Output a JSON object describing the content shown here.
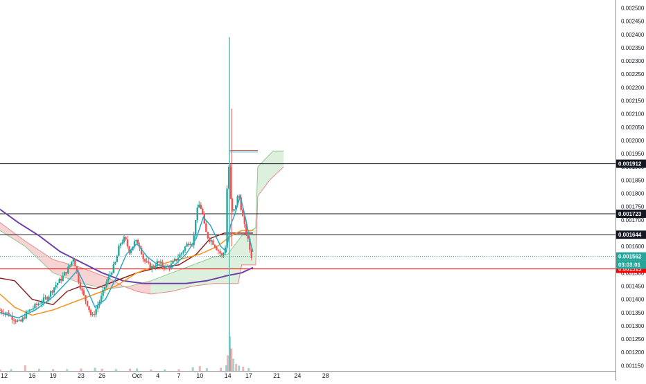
{
  "chart_data": {
    "type": "candlestick",
    "title": "",
    "xlabel": "",
    "ylabel": "",
    "ylim": [
      0.00113,
      0.00253
    ],
    "x_domain_days": [
      -19.6,
      68.5
    ],
    "grid": false,
    "y_ticks": [
      "0.002500",
      "0.002450",
      "0.002400",
      "0.002350",
      "0.002300",
      "0.002250",
      "0.002200",
      "0.002150",
      "0.002100",
      "0.002050",
      "0.002000",
      "0.001950",
      "0.001900",
      "0.001850",
      "0.001800",
      "0.001750",
      "0.001700",
      "0.001650",
      "0.001600",
      "0.001550",
      "0.001500",
      "0.001450",
      "0.001400",
      "0.001350",
      "0.001300",
      "0.001250",
      "0.001200",
      "0.001150"
    ],
    "x_ticks": [
      {
        "label": "12",
        "day": -19
      },
      {
        "label": "16",
        "day": -15
      },
      {
        "label": "19",
        "day": -12
      },
      {
        "label": "23",
        "day": -8
      },
      {
        "label": "26",
        "day": -5
      },
      {
        "label": "Oct",
        "day": 0
      },
      {
        "label": "4",
        "day": 3
      },
      {
        "label": "7",
        "day": 6
      },
      {
        "label": "10",
        "day": 9
      },
      {
        "label": "14",
        "day": 13
      },
      {
        "label": "17",
        "day": 16
      },
      {
        "label": "21",
        "day": 20
      },
      {
        "label": "24",
        "day": 23
      },
      {
        "label": "28",
        "day": 27
      }
    ],
    "horizontal_levels": [
      {
        "label": "0.001912",
        "value": 0.001912,
        "color": "#131722"
      },
      {
        "label": "0.001723",
        "value": 0.001723,
        "color": "#131722"
      },
      {
        "label": "0.001644",
        "value": 0.001644,
        "color": "#131722"
      },
      {
        "label": "0.001515",
        "value": 0.001515,
        "color": "#ff0000"
      }
    ],
    "last_price": {
      "label": "0.001562",
      "value": 0.001562,
      "countdown": "03:03:01",
      "color": "#26a69a"
    },
    "colors": {
      "up": "#26a69a",
      "down": "#ef5350",
      "ma_fast": "#2aa8c7",
      "ma_mid": "#f6921e",
      "ma_slow": "#6d3fa8",
      "base_line": "#8b2323",
      "cloud_bear": "#f5c4c4",
      "cloud_bull": "#cfe8cf",
      "cloud_edge_bear": "#e88a8a",
      "cloud_edge_bull": "#8fc98f",
      "spike": "#4fc3c3"
    },
    "price_series": [
      [
        -19.6,
        0.00136
      ],
      [
        -18.5,
        0.00135
      ],
      [
        -17.5,
        0.00133
      ],
      [
        -16.5,
        0.00131
      ],
      [
        -15.5,
        0.00135
      ],
      [
        -14.5,
        0.00137
      ],
      [
        -13.5,
        0.00139
      ],
      [
        -12.5,
        0.00141
      ],
      [
        -11.5,
        0.00145
      ],
      [
        -10.5,
        0.00148
      ],
      [
        -9.5,
        0.00152
      ],
      [
        -8.8,
        0.00156
      ],
      [
        -8.2,
        0.00148
      ],
      [
        -7.5,
        0.00142
      ],
      [
        -6.8,
        0.00138
      ],
      [
        -6.2,
        0.00133
      ],
      [
        -5.5,
        0.00137
      ],
      [
        -4.8,
        0.00141
      ],
      [
        -4.2,
        0.00146
      ],
      [
        -3.5,
        0.0015
      ],
      [
        -2.8,
        0.00154
      ],
      [
        -2.2,
        0.00161
      ],
      [
        -1.5,
        0.00163
      ],
      [
        -0.8,
        0.00158
      ],
      [
        0,
        0.00162
      ],
      [
        0.7,
        0.0016
      ],
      [
        1.2,
        0.00155
      ],
      [
        1.8,
        0.00153
      ],
      [
        2.5,
        0.00152
      ],
      [
        3.2,
        0.00154
      ],
      [
        3.8,
        0.00153
      ],
      [
        4.5,
        0.00152
      ],
      [
        5.2,
        0.00153
      ],
      [
        5.8,
        0.00155
      ],
      [
        6.5,
        0.00157
      ],
      [
        7.2,
        0.0016
      ],
      [
        7.8,
        0.00162
      ],
      [
        8.3,
        0.00161
      ],
      [
        8.7,
        0.00172
      ],
      [
        9.2,
        0.00176
      ],
      [
        9.6,
        0.00173
      ],
      [
        10.0,
        0.00166
      ],
      [
        10.5,
        0.00163
      ],
      [
        11.0,
        0.00162
      ],
      [
        11.5,
        0.0016
      ],
      [
        12.0,
        0.00158
      ],
      [
        12.5,
        0.00156
      ],
      [
        12.9,
        0.0016
      ],
      [
        13.3,
        0.00195
      ],
      [
        13.7,
        0.00175
      ],
      [
        14.0,
        0.00172
      ],
      [
        14.4,
        0.00176
      ],
      [
        14.8,
        0.0018
      ],
      [
        15.2,
        0.00174
      ],
      [
        15.6,
        0.00168
      ],
      [
        16.0,
        0.00164
      ],
      [
        16.4,
        0.00159
      ],
      [
        16.6,
        0.001562
      ]
    ],
    "ma_fast": [
      [
        -19.6,
        0.00135
      ],
      [
        -17.0,
        0.00133
      ],
      [
        -14.5,
        0.00136
      ],
      [
        -12.0,
        0.00141
      ],
      [
        -9.5,
        0.00148
      ],
      [
        -8.5,
        0.00151
      ],
      [
        -7.0,
        0.00143
      ],
      [
        -6.0,
        0.00137
      ],
      [
        -4.5,
        0.0014
      ],
      [
        -3.0,
        0.00148
      ],
      [
        -1.5,
        0.00157
      ],
      [
        0,
        0.00161
      ],
      [
        1.5,
        0.00156
      ],
      [
        3.0,
        0.00153
      ],
      [
        5.0,
        0.00152
      ],
      [
        7.0,
        0.00157
      ],
      [
        8.5,
        0.00163
      ],
      [
        9.5,
        0.00171
      ],
      [
        10.5,
        0.00168
      ],
      [
        12.0,
        0.0016
      ],
      [
        12.8,
        0.00158
      ],
      [
        13.4,
        0.00168
      ],
      [
        14.0,
        0.00172
      ],
      [
        14.8,
        0.00179
      ],
      [
        15.6,
        0.0017
      ],
      [
        16.2,
        0.00162
      ],
      [
        16.6,
        0.00158
      ]
    ],
    "ma_mid": [
      [
        -19.6,
        0.00142
      ],
      [
        -17.5,
        0.00137
      ],
      [
        -15.0,
        0.00134
      ],
      [
        -12.0,
        0.00136
      ],
      [
        -9.0,
        0.00139
      ],
      [
        -6.0,
        0.00142
      ],
      [
        -3.0,
        0.00145
      ],
      [
        0,
        0.0015
      ],
      [
        3.0,
        0.00153
      ],
      [
        6.0,
        0.00155
      ],
      [
        9.0,
        0.00157
      ],
      [
        11.5,
        0.0016
      ],
      [
        13.5,
        0.00164
      ],
      [
        15.0,
        0.00166
      ],
      [
        16.6,
        0.00166
      ]
    ],
    "ma_slow": [
      [
        -19.6,
        0.00174
      ],
      [
        -17.0,
        0.00169
      ],
      [
        -14.0,
        0.00164
      ],
      [
        -11.0,
        0.00158
      ],
      [
        -8.0,
        0.00154
      ],
      [
        -5.0,
        0.0015
      ],
      [
        -2.0,
        0.00147
      ],
      [
        1.0,
        0.00146
      ],
      [
        4.0,
        0.00146
      ],
      [
        7.0,
        0.00146
      ],
      [
        10.0,
        0.00147
      ],
      [
        13.0,
        0.00149
      ],
      [
        15.0,
        0.0015
      ],
      [
        16.6,
        0.00152
      ]
    ],
    "base_line": [
      [
        -19.6,
        0.00148
      ],
      [
        -17.5,
        0.00147
      ],
      [
        -15.0,
        0.0014
      ],
      [
        -12.0,
        0.00138
      ],
      [
        -10.0,
        0.00143
      ],
      [
        -8.0,
        0.00145
      ],
      [
        -6.0,
        0.00144
      ],
      [
        -4.0,
        0.00146
      ],
      [
        -2.0,
        0.00148
      ],
      [
        0,
        0.0015
      ],
      [
        3.0,
        0.00152
      ],
      [
        6.0,
        0.00153
      ],
      [
        8.5,
        0.00157
      ],
      [
        10.5,
        0.00163
      ],
      [
        12.5,
        0.00165
      ],
      [
        13.5,
        0.00165
      ],
      [
        16.6,
        0.00165
      ]
    ],
    "cloud_span_a": [
      [
        -19.6,
        0.00166
      ],
      [
        -16.0,
        0.0016
      ],
      [
        -12.0,
        0.0015
      ],
      [
        -8.0,
        0.00146
      ],
      [
        -4.0,
        0.00144
      ],
      [
        -1.0,
        0.00145
      ],
      [
        2.0,
        0.00147
      ],
      [
        5.0,
        0.0015
      ],
      [
        8.0,
        0.00153
      ],
      [
        11.0,
        0.00156
      ],
      [
        13.0,
        0.00157
      ],
      [
        15.0,
        0.00164
      ],
      [
        17.0,
        0.00167
      ],
      [
        17.3,
        0.0019
      ],
      [
        19.5,
        0.00196
      ],
      [
        21.0,
        0.00196
      ]
    ],
    "cloud_span_b": [
      [
        -19.6,
        0.00169
      ],
      [
        -16.0,
        0.00162
      ],
      [
        -12.0,
        0.00155
      ],
      [
        -8.0,
        0.00152
      ],
      [
        -4.0,
        0.00148
      ],
      [
        -2.0,
        0.00145
      ],
      [
        0,
        0.00143
      ],
      [
        2.0,
        0.00142
      ],
      [
        5.0,
        0.00143
      ],
      [
        8.0,
        0.00145
      ],
      [
        11.0,
        0.00146
      ],
      [
        13.5,
        0.00146
      ],
      [
        14.5,
        0.00146
      ],
      [
        15.0,
        0.00153
      ],
      [
        17.0,
        0.00153
      ],
      [
        17.3,
        0.00179
      ],
      [
        19.0,
        0.00185
      ],
      [
        21.0,
        0.0019
      ]
    ],
    "spike": {
      "day": 13.25,
      "high": 0.00239,
      "low": 0.00113
    },
    "volume": [
      [
        -19.6,
        0.4
      ],
      [
        -18,
        0.5
      ],
      [
        -16,
        1.6
      ],
      [
        -14,
        0.6
      ],
      [
        -12,
        0.5
      ],
      [
        -10,
        0.5
      ],
      [
        -8,
        0.7
      ],
      [
        -6,
        0.9
      ],
      [
        -5,
        0.6
      ],
      [
        -3,
        0.5
      ],
      [
        -1,
        0.6
      ],
      [
        0,
        0.7
      ],
      [
        2,
        0.4
      ],
      [
        4,
        0.4
      ],
      [
        6,
        0.5
      ],
      [
        8,
        1.0
      ],
      [
        9,
        1.4
      ],
      [
        10,
        0.8
      ],
      [
        12,
        0.9
      ],
      [
        12.8,
        1.6
      ],
      [
        13.0,
        4.5
      ],
      [
        13.3,
        10.0
      ],
      [
        13.5,
        6.5
      ],
      [
        13.8,
        3.5
      ],
      [
        14.2,
        2.0
      ],
      [
        14.6,
        1.5
      ],
      [
        15.2,
        1.2
      ],
      [
        16.0,
        0.8
      ]
    ]
  }
}
